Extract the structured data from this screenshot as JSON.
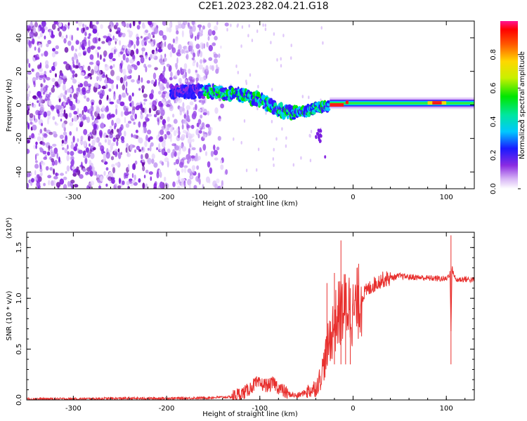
{
  "title": "C2E1.2023.282.04.21.G18",
  "chart_data": [
    {
      "type": "heatmap",
      "xlabel": "Height of straight line (km)",
      "ylabel": "Frequency (Hz)",
      "xlim": [
        -350,
        130
      ],
      "ylim": [
        -50,
        50
      ],
      "x_ticks": [
        -300,
        -200,
        -100,
        0,
        100
      ],
      "y_ticks": [
        -40,
        -20,
        0,
        20,
        40
      ],
      "colorbar": {
        "label": "Normalized spectral amplitude",
        "range": [
          0,
          1
        ],
        "ticks": [
          "0.0",
          "0.2",
          "0.4",
          "0.6",
          "0.8"
        ]
      },
      "ridge": [
        {
          "x": -190,
          "y": 8
        },
        {
          "x": -150,
          "y": 8
        },
        {
          "x": -120,
          "y": 6
        },
        {
          "x": -100,
          "y": 3
        },
        {
          "x": -80,
          "y": -3
        },
        {
          "x": -60,
          "y": -5
        },
        {
          "x": -40,
          "y": -2
        },
        {
          "x": -20,
          "y": 0
        },
        {
          "x": 0,
          "y": 0
        },
        {
          "x": 50,
          "y": 1
        },
        {
          "x": 100,
          "y": 1
        },
        {
          "x": 130,
          "y": 1
        }
      ]
    },
    {
      "type": "line",
      "xlabel": "Height of straight line (km)",
      "ylabel": "SNR (10 * v/v)",
      "y_exponent": "(x10⁴)",
      "xlim": [
        -350,
        130
      ],
      "ylim": [
        0,
        1.65
      ],
      "x_ticks": [
        -300,
        -200,
        -100,
        0,
        100
      ],
      "y_ticks": [
        "0.0",
        "0.5",
        "1.0",
        "1.5"
      ],
      "color": "#e8302e",
      "series": [
        {
          "x": [
            -350,
            -300,
            -250,
            -200,
            -160,
            -130,
            -115,
            -105,
            -95,
            -90,
            -85,
            -80,
            -70,
            -60,
            -50,
            -40,
            -35,
            -30,
            -25,
            -20,
            -15,
            -10,
            -5,
            0,
            5,
            10,
            20,
            30,
            40,
            50,
            60,
            80,
            100,
            104,
            105,
            106,
            110,
            120,
            130
          ],
          "y": [
            0.01,
            0.01,
            0.015,
            0.015,
            0.02,
            0.03,
            0.08,
            0.16,
            0.15,
            0.14,
            0.17,
            0.12,
            0.06,
            0.04,
            0.08,
            0.12,
            0.22,
            0.4,
            0.6,
            0.75,
            0.85,
            0.9,
            0.95,
            0.85,
            0.95,
            1.03,
            1.12,
            1.18,
            1.2,
            1.22,
            1.21,
            1.2,
            1.19,
            1.25,
            0.65,
            1.3,
            1.18,
            1.19,
            1.18
          ],
          "spikes": [
            {
              "x": -28,
              "y": 1.15
            },
            {
              "x": -20,
              "y": 1.25
            },
            {
              "x": -13,
              "y": 1.57
            },
            {
              "x": -8,
              "y": 1.15
            },
            {
              "x": -3,
              "y": 1.1
            },
            {
              "x": 105,
              "y": 1.62
            }
          ]
        }
      ]
    }
  ]
}
